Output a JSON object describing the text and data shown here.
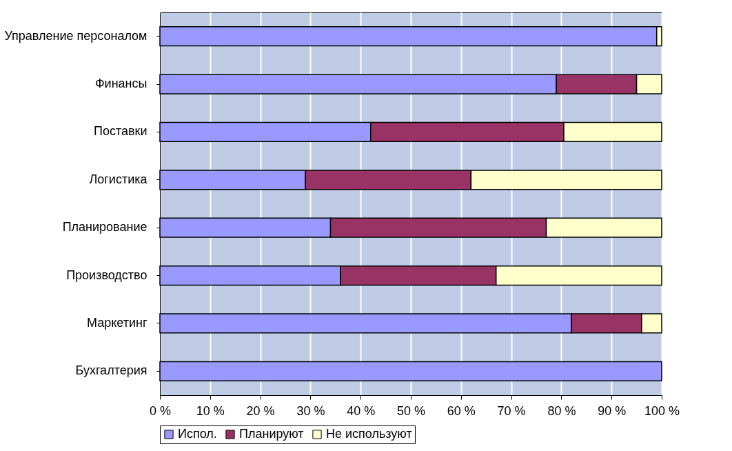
{
  "chart_data": {
    "type": "bar",
    "orientation": "horizontal",
    "stacked": true,
    "categories": [
      "Управление персоналом",
      "Финансы",
      "Поставки",
      "Логистика",
      "Планирование",
      "Производство",
      "Маркетинг",
      "Бухгалтерия"
    ],
    "series": [
      {
        "name": "Испол.",
        "color": "#9999ff",
        "values": [
          99,
          79,
          42,
          29,
          34,
          36,
          82,
          100
        ]
      },
      {
        "name": "Планируют",
        "color": "#993366",
        "values": [
          null,
          16,
          38.5,
          33,
          43,
          31,
          14,
          null
        ]
      },
      {
        "name": "Не используют",
        "color": "#ffffcc",
        "values": [
          1,
          5,
          19.5,
          38,
          23,
          33,
          4,
          null
        ]
      }
    ],
    "xlim": [
      0,
      100
    ],
    "xticks": [
      {
        "value": 0,
        "label": "0 %"
      },
      {
        "value": 10,
        "label": "10 %"
      },
      {
        "value": 20,
        "label": "20 %"
      },
      {
        "value": 30,
        "label": "30 %"
      },
      {
        "value": 40,
        "label": "40 %"
      },
      {
        "value": 50,
        "label": "50 %"
      },
      {
        "value": 60,
        "label": "60 %"
      },
      {
        "value": 70,
        "label": "70 %"
      },
      {
        "value": 80,
        "label": "80 %"
      },
      {
        "value": 90,
        "label": "90 %"
      },
      {
        "value": 100,
        "label": "100 %"
      }
    ],
    "grid": "x",
    "legend": "bottom"
  }
}
